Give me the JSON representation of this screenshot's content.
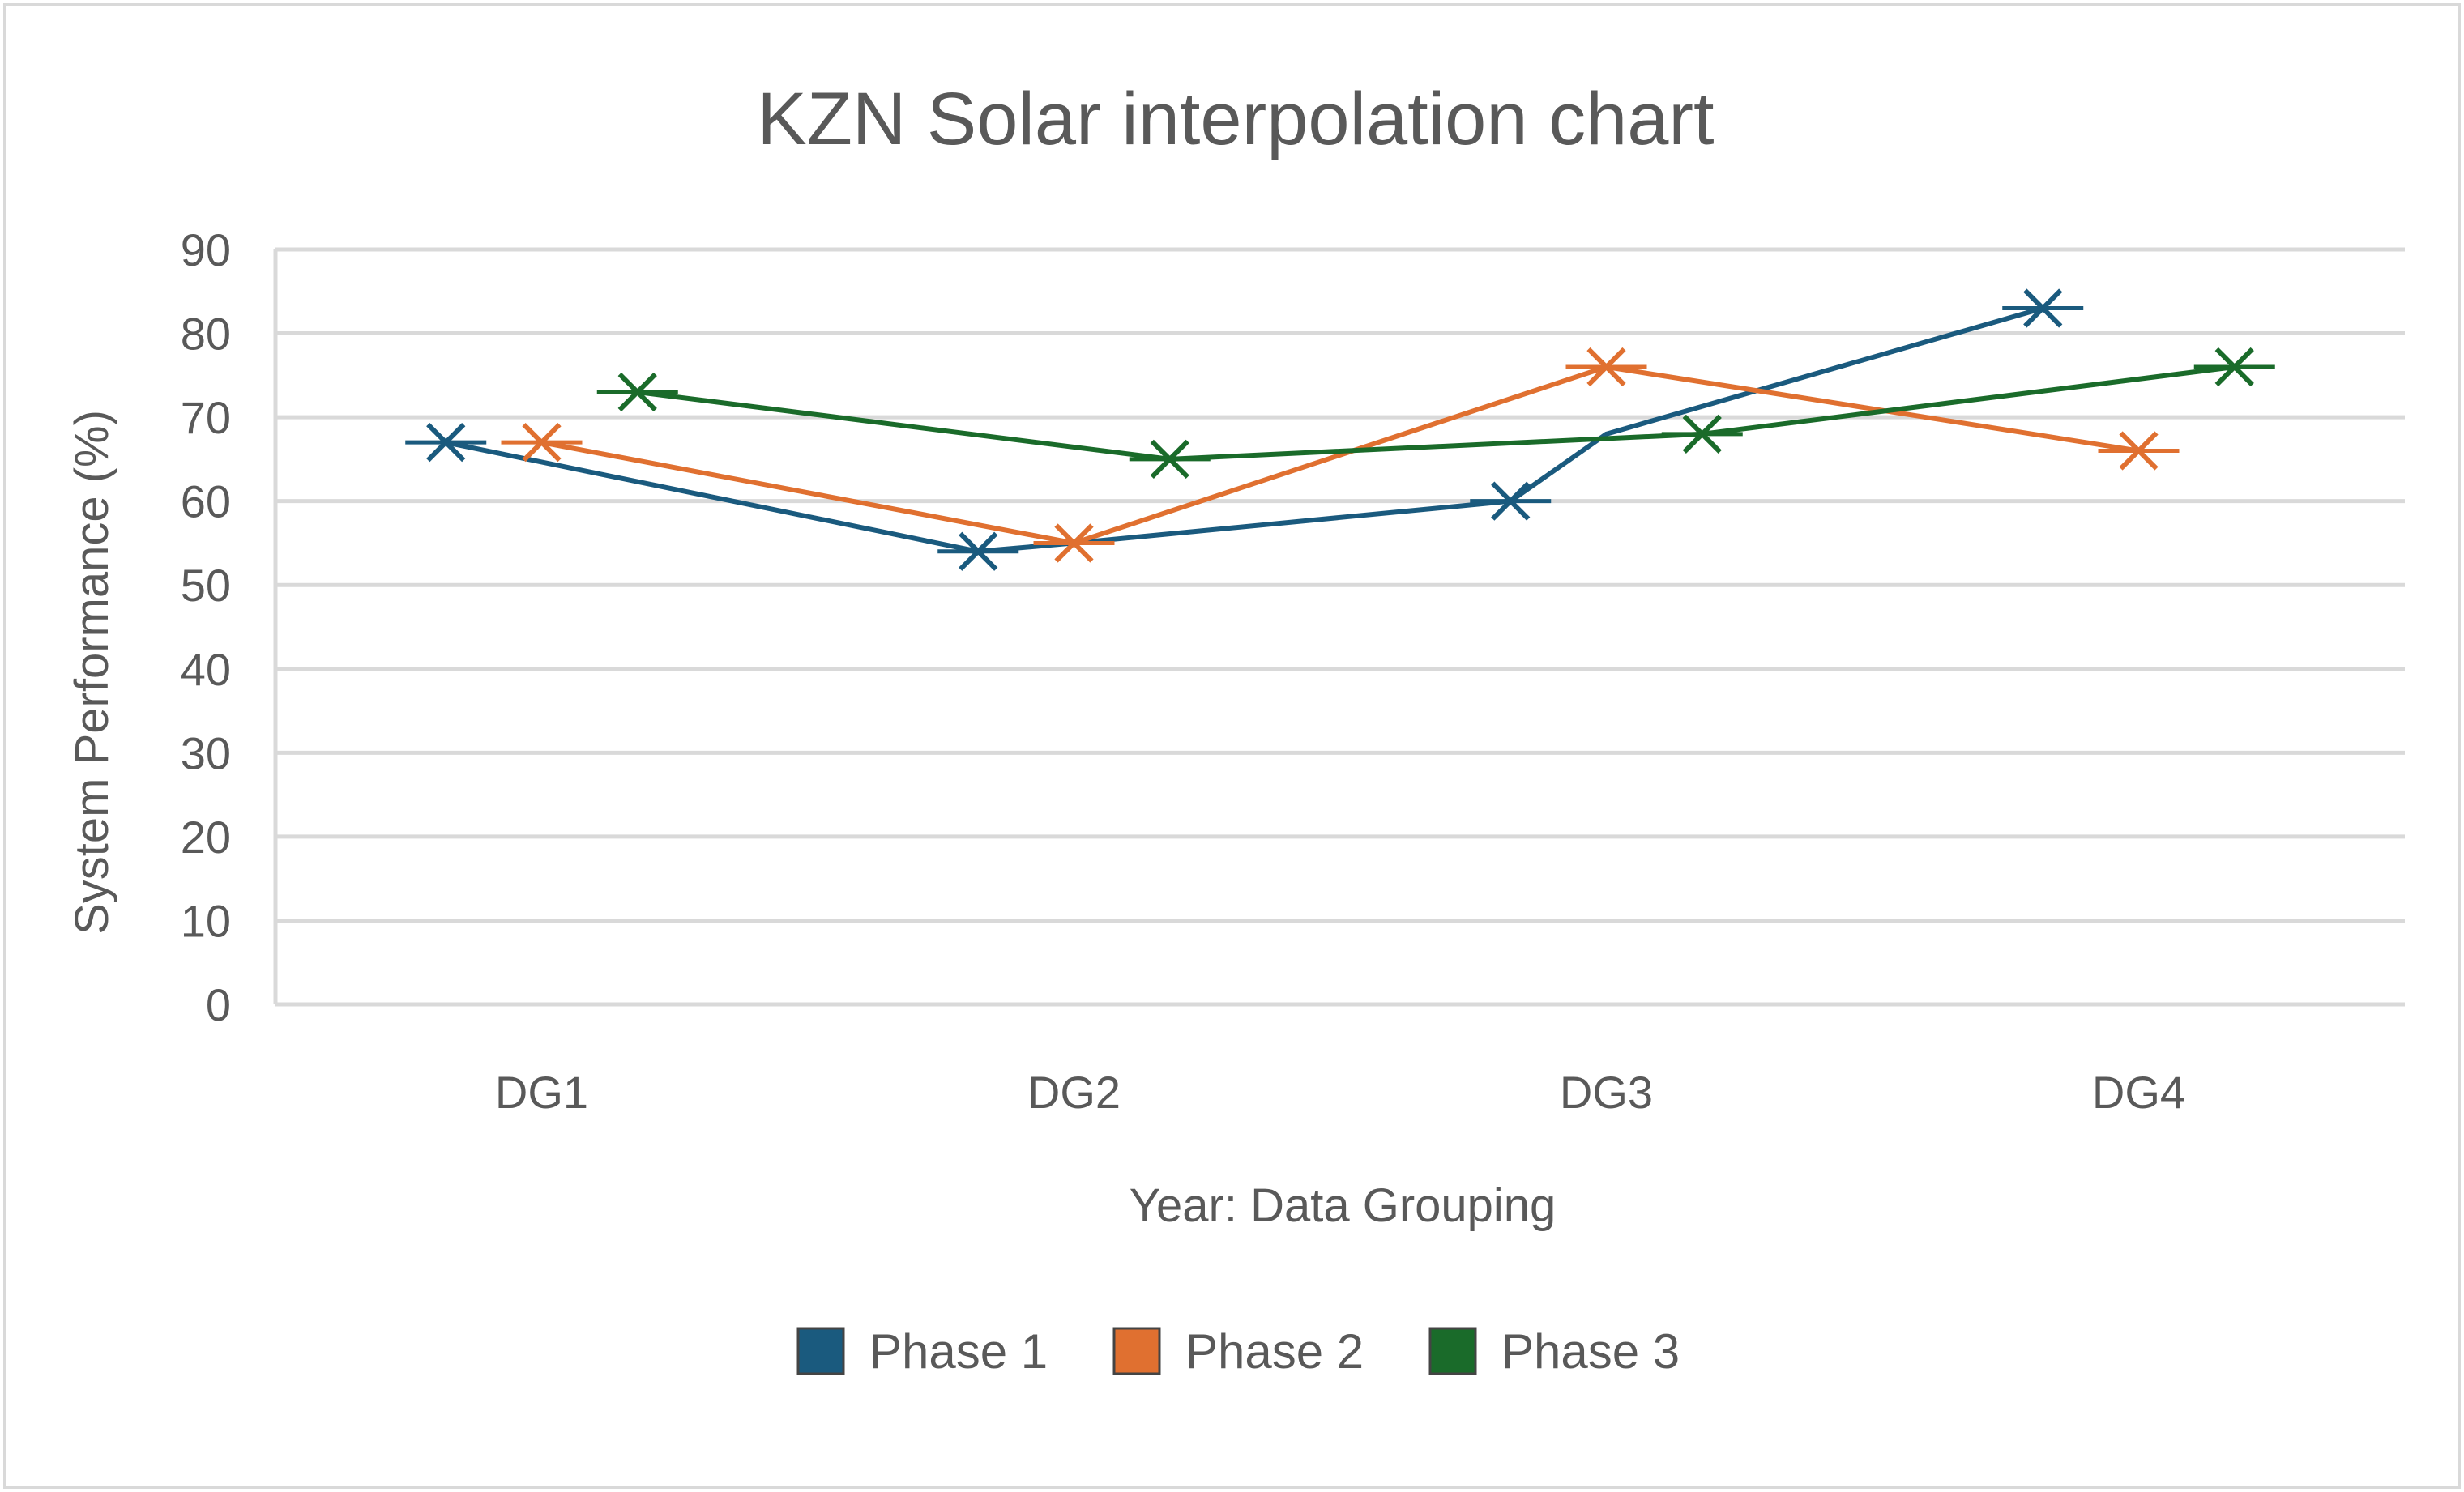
{
  "chart_data": {
    "type": "line",
    "title": "KZN Solar interpolation chart",
    "xlabel": "Year: Data Grouping",
    "ylabel": "System Performance (%)",
    "categories": [
      "DG1",
      "DG2",
      "DG3",
      "DG4"
    ],
    "ylim": [
      0,
      90
    ],
    "yticks": [
      0,
      10,
      20,
      30,
      40,
      50,
      60,
      70,
      80,
      90
    ],
    "grid": true,
    "legend_position": "bottom",
    "marker": "x",
    "series": [
      {
        "name": "Phase 1",
        "color": "#1a5a7e",
        "values": [
          67,
          54,
          60,
          83
        ],
        "x_offset": -0.18,
        "intermediate": [
          null,
          55,
          68,
          null
        ]
      },
      {
        "name": "Phase 2",
        "color": "#e07030",
        "values": [
          67,
          55,
          76,
          66
        ],
        "x_offset": 0,
        "intermediate": [
          null,
          null,
          null,
          null
        ]
      },
      {
        "name": "Phase 3",
        "color": "#1a6b2a",
        "values": [
          73,
          65,
          68,
          76
        ],
        "x_offset": 0.18,
        "intermediate": [
          null,
          null,
          null,
          null
        ]
      }
    ]
  }
}
